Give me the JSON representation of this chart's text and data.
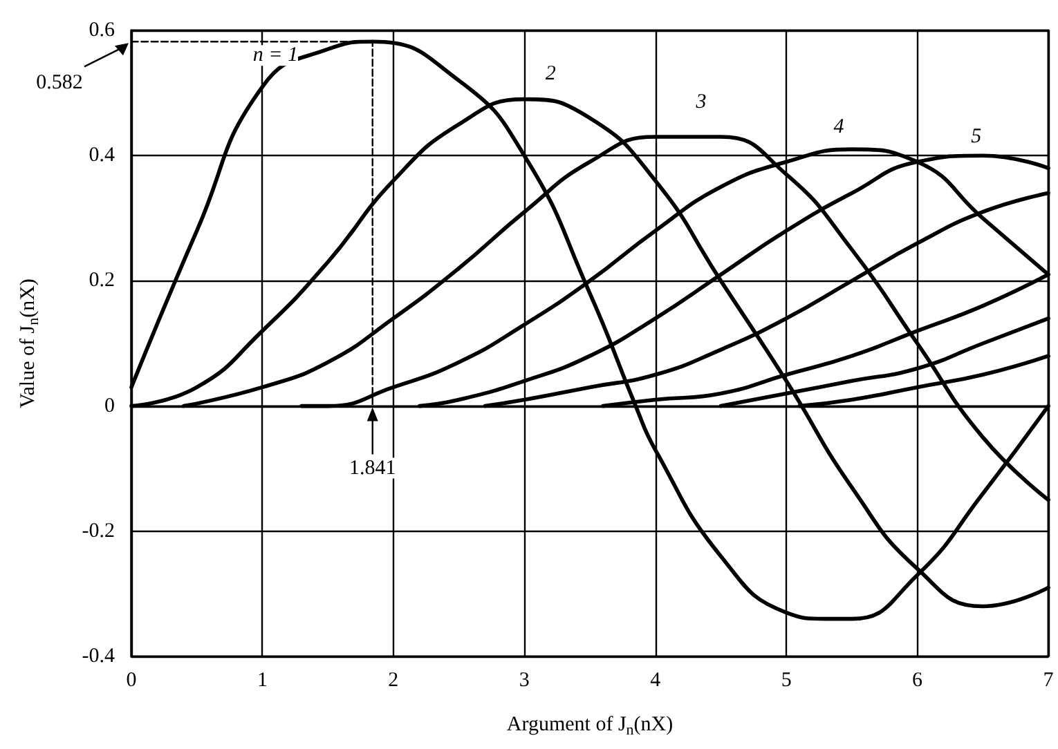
{
  "chart_data": {
    "type": "line",
    "xlabel": "Argument of J$_{n}$(nX)",
    "ylabel": "Value of J$_{n}$(nX)",
    "xlim": [
      0,
      7
    ],
    "xticks": [
      0,
      1,
      2,
      3,
      4,
      5,
      6,
      7
    ],
    "ylim": [
      -0.4,
      0.6
    ],
    "yticks": [
      -0.4,
      -0.2,
      0,
      0.2,
      0.4,
      0.6
    ],
    "grid": true,
    "marker": "none",
    "line_style": "solid",
    "series": [
      {
        "color": "#000000",
        "x": [
          0,
          0.5,
          1,
          1.5,
          1.841,
          2.5,
          3,
          3.5,
          3.85,
          4,
          4.5,
          5,
          5.3,
          5.5,
          6,
          6.5,
          7
        ],
        "values": [
          0.03,
          0.28,
          0.51,
          0.57,
          0.582,
          0.52,
          0.4,
          0.18,
          0,
          -0.07,
          -0.24,
          -0.33,
          -0.34,
          -0.34,
          -0.27,
          -0.14,
          0
        ]
      },
      {
        "color": "#000000",
        "x": [
          0,
          0.5,
          1,
          1.5,
          2,
          2.5,
          3,
          3.5,
          4,
          4.5,
          5,
          5.5,
          6,
          6.5,
          7
        ],
        "values": [
          0,
          0.03,
          0.12,
          0.23,
          0.36,
          0.45,
          0.49,
          0.46,
          0.36,
          0.2,
          0.04,
          -0.13,
          -0.26,
          -0.32,
          -0.29
        ]
      },
      {
        "color": "#000000",
        "x": [
          0.4,
          1,
          1.5,
          2,
          2.5,
          3,
          3.5,
          4,
          4.5,
          5,
          5.5,
          6,
          6.5,
          7
        ],
        "values": [
          0,
          0.03,
          0.07,
          0.14,
          0.22,
          0.31,
          0.39,
          0.43,
          0.43,
          0.37,
          0.25,
          0.1,
          -0.05,
          -0.15
        ]
      },
      {
        "color": "#000000",
        "x": [
          1.3,
          1.5,
          2,
          2.5,
          3,
          3.5,
          4,
          4.5,
          5,
          5.5,
          6,
          6.5,
          7
        ],
        "values": [
          0,
          0,
          0.03,
          0.07,
          0.13,
          0.2,
          0.28,
          0.35,
          0.39,
          0.41,
          0.39,
          0.3,
          0.21
        ]
      },
      {
        "color": "#000000",
        "x": [
          2.2,
          2.5,
          3,
          3.5,
          4,
          4.5,
          5,
          5.5,
          6,
          6.5,
          7
        ],
        "values": [
          0,
          0.01,
          0.04,
          0.08,
          0.14,
          0.21,
          0.28,
          0.34,
          0.39,
          0.4,
          0.38
        ]
      },
      {
        "color": "#000000",
        "x": [
          2.7,
          3,
          3.5,
          4,
          4.5,
          5,
          5.5,
          6,
          6.5,
          7
        ],
        "values": [
          0,
          0.01,
          0.03,
          0.05,
          0.09,
          0.14,
          0.2,
          0.26,
          0.31,
          0.34
        ]
      },
      {
        "color": "#000000",
        "x": [
          3.6,
          4,
          4.5,
          5,
          5.5,
          6,
          6.5,
          7
        ],
        "values": [
          0,
          0.01,
          0.02,
          0.05,
          0.08,
          0.12,
          0.16,
          0.21
        ]
      },
      {
        "color": "#000000",
        "x": [
          4.5,
          5,
          5.5,
          6,
          6.5,
          7
        ],
        "values": [
          0,
          0.02,
          0.04,
          0.06,
          0.1,
          0.14
        ]
      },
      {
        "color": "#000000",
        "x": [
          5.1,
          5.5,
          6,
          6.5,
          7
        ],
        "values": [
          0,
          0.01,
          0.03,
          0.05,
          0.08
        ]
      },
      {
        "color": "#000000",
        "type": "line",
        "line_style": "dashed",
        "x": [
          0,
          1.841,
          1.841
        ],
        "values": [
          0.582,
          0.582,
          0
        ]
      }
    ],
    "annotations": [
      {
        "text": "n = 1",
        "x": 1.1,
        "y": 0.56
      },
      {
        "text": "2",
        "x": 3.2,
        "y": 0.53
      },
      {
        "text": "3",
        "x": 4.35,
        "y": 0.485
      },
      {
        "text": "4",
        "x": 5.4,
        "y": 0.445
      },
      {
        "text": "5",
        "x": 6.45,
        "y": 0.43
      },
      {
        "text": "0.582",
        "x": 0,
        "y": 0.582
      },
      {
        "text": "1.841",
        "x": 1.841,
        "y": 0
      }
    ]
  }
}
